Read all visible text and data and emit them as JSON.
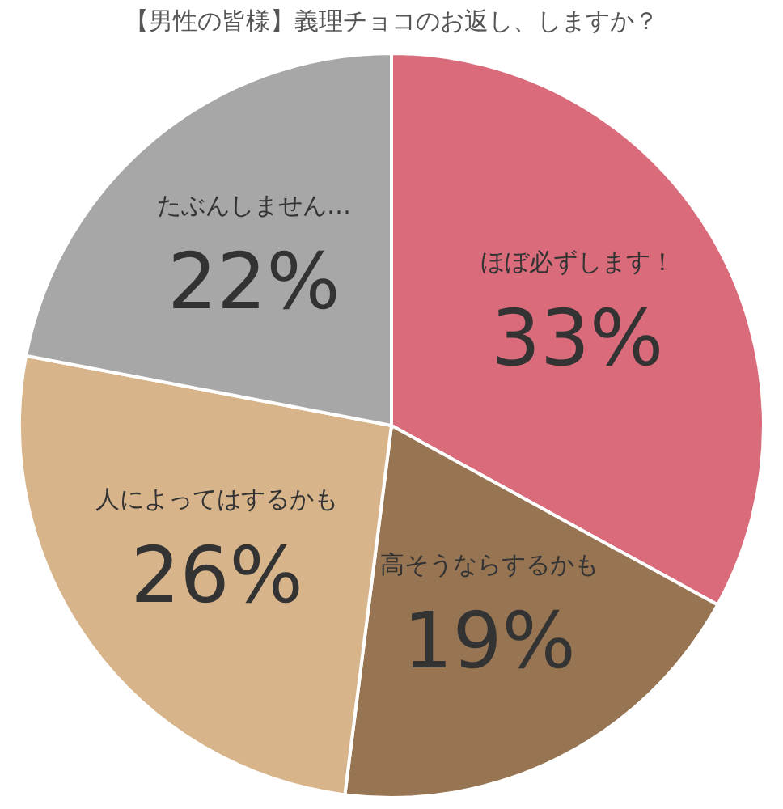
{
  "chart_data": {
    "type": "pie",
    "title": "【男性の皆様】義理チョコのお返し、しますか？",
    "categories": [
      "ほぼ必ずします！",
      "高そうならするかも",
      "人によってはするかも",
      "たぶんしません…"
    ],
    "values": [
      33,
      19,
      26,
      22
    ],
    "colors": [
      "#d96b7a",
      "#977452",
      "#d7b48a",
      "#a7a7a7"
    ],
    "value_labels": [
      "33%",
      "19%",
      "26%",
      "22%"
    ],
    "legend": false
  }
}
